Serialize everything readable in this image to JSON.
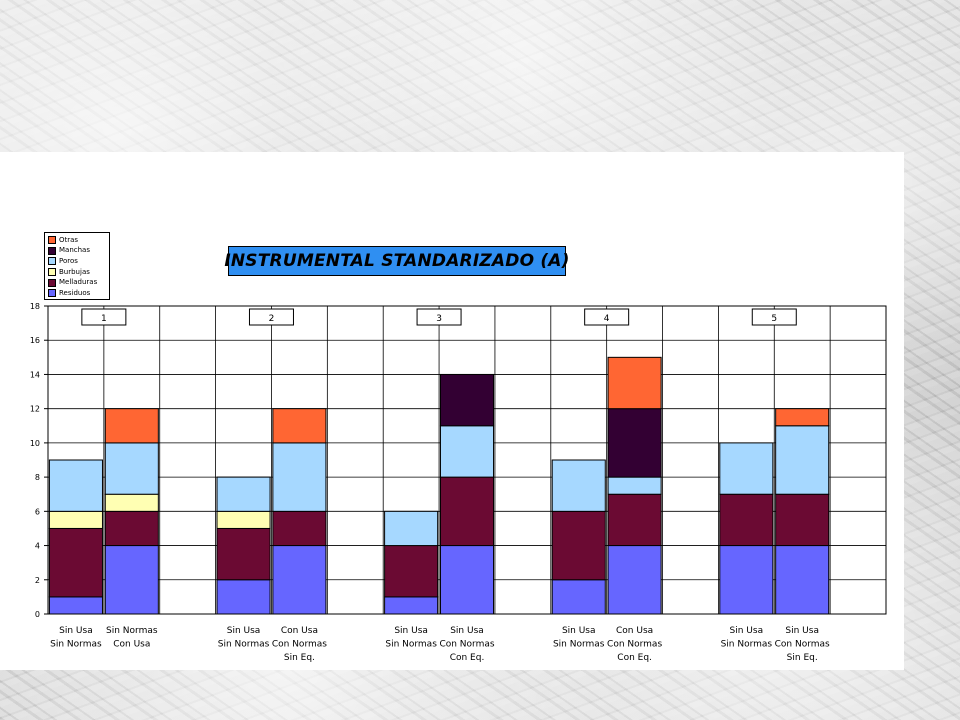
{
  "chart_data": {
    "type": "bar",
    "stacked": true,
    "title": "INSTRUMENTAL STANDARIZADO (A)",
    "ylim": [
      0,
      18
    ],
    "yticks": [
      0,
      2,
      4,
      6,
      8,
      10,
      12,
      14,
      16,
      18
    ],
    "grid": true,
    "legend_position": "top-left",
    "groups": [
      "1",
      "2",
      "3",
      "4",
      "5"
    ],
    "categories": [
      "Sin Usa\nSin Normas",
      "Sin Normas\nCon Usa",
      "Sin Usa\nSin Normas",
      "Con Usa\nCon Normas\nSin Eq.",
      "Sin Usa\nSin Normas",
      "Sin Usa\nCon Normas\nCon Eq.",
      "Sin Usa\nSin Normas",
      "Con Usa\nCon Normas\nCon Eq.",
      "Sin Usa\nSin Normas",
      "Sin Usa\nCon Normas\nSin Eq."
    ],
    "series": [
      {
        "name": "Residuos",
        "color": "#6666ff",
        "values": [
          1,
          4,
          2,
          4,
          1,
          4,
          2,
          4,
          4,
          4
        ]
      },
      {
        "name": "Melladuras",
        "color": "#6b0a33",
        "values": [
          4,
          2,
          3,
          2,
          3,
          4,
          4,
          3,
          3,
          3
        ]
      },
      {
        "name": "Burbujas",
        "color": "#ffffb3",
        "values": [
          1,
          1,
          1,
          0,
          0,
          0,
          0,
          0,
          0,
          0
        ]
      },
      {
        "name": "Poros",
        "color": "#a6d8ff",
        "values": [
          3,
          3,
          2,
          4,
          2,
          3,
          3,
          1,
          3,
          4
        ]
      },
      {
        "name": "Manchas",
        "color": "#330033",
        "values": [
          0,
          0,
          0,
          0,
          0,
          3,
          0,
          4,
          0,
          0
        ]
      },
      {
        "name": "Otras",
        "color": "#ff6633",
        "values": [
          0,
          2,
          0,
          2,
          0,
          0,
          0,
          3,
          0,
          1
        ]
      }
    ]
  }
}
